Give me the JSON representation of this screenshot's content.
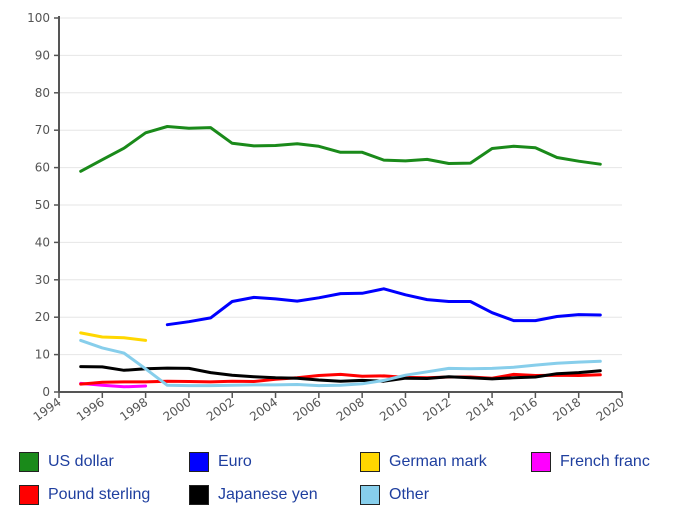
{
  "chart_data": {
    "type": "line",
    "xlim": [
      1994,
      2020
    ],
    "ylim": [
      0,
      100
    ],
    "x_ticks": [
      "1994",
      "1996",
      "1998",
      "2000",
      "2002",
      "2004",
      "2006",
      "2008",
      "2010",
      "2012",
      "2014",
      "2016",
      "2018",
      "2020"
    ],
    "y_ticks": [
      "0",
      "10",
      "20",
      "30",
      "40",
      "50",
      "60",
      "70",
      "80",
      "90",
      "100"
    ],
    "grid": "horizontal",
    "legend_position": "bottom",
    "series": [
      {
        "name": "US dollar",
        "color": "#1a8a1a",
        "x": [
          1995,
          1996,
          1997,
          1998,
          1999,
          2000,
          2001,
          2002,
          2003,
          2004,
          2005,
          2006,
          2007,
          2008,
          2009,
          2010,
          2011,
          2012,
          2013,
          2014,
          2015,
          2016,
          2017,
          2018,
          2019
        ],
        "values": [
          59.0,
          62.1,
          65.2,
          69.3,
          71.0,
          70.5,
          70.7,
          66.5,
          65.8,
          65.9,
          66.4,
          65.7,
          64.1,
          64.1,
          62.0,
          61.8,
          62.2,
          61.1,
          61.2,
          65.1,
          65.7,
          65.3,
          62.7,
          61.7,
          60.9
        ]
      },
      {
        "name": "Euro",
        "color": "#0000ff",
        "x": [
          1999,
          2000,
          2001,
          2002,
          2003,
          2004,
          2005,
          2006,
          2007,
          2008,
          2009,
          2010,
          2011,
          2012,
          2013,
          2014,
          2015,
          2016,
          2017,
          2018,
          2019
        ],
        "values": [
          18.0,
          18.8,
          19.8,
          24.2,
          25.3,
          24.9,
          24.3,
          25.2,
          26.3,
          26.4,
          27.6,
          26.0,
          24.7,
          24.2,
          24.2,
          21.2,
          19.1,
          19.1,
          20.2,
          20.7,
          20.6
        ]
      },
      {
        "name": "German mark",
        "color": "#ffd700",
        "x": [
          1995,
          1996,
          1997,
          1998
        ],
        "values": [
          15.8,
          14.7,
          14.5,
          13.8
        ]
      },
      {
        "name": "French franc",
        "color": "#ff00ff",
        "x": [
          1995,
          1996,
          1997,
          1998
        ],
        "values": [
          2.3,
          1.8,
          1.4,
          1.6
        ]
      },
      {
        "name": "Pound sterling",
        "color": "#ff0000",
        "x": [
          1995,
          1996,
          1997,
          1998,
          1999,
          2000,
          2001,
          2002,
          2003,
          2004,
          2005,
          2006,
          2007,
          2008,
          2009,
          2010,
          2011,
          2012,
          2013,
          2014,
          2015,
          2016,
          2017,
          2018,
          2019
        ],
        "values": [
          2.1,
          2.6,
          2.7,
          2.7,
          2.9,
          2.8,
          2.7,
          2.9,
          2.8,
          3.4,
          3.8,
          4.4,
          4.7,
          4.2,
          4.3,
          3.9,
          3.8,
          4.0,
          4.0,
          3.7,
          4.7,
          4.4,
          4.5,
          4.4,
          4.6
        ]
      },
      {
        "name": "Japanese yen",
        "color": "#000000",
        "x": [
          1995,
          1996,
          1997,
          1998,
          1999,
          2000,
          2001,
          2002,
          2003,
          2004,
          2005,
          2006,
          2007,
          2008,
          2009,
          2010,
          2011,
          2012,
          2013,
          2014,
          2015,
          2016,
          2017,
          2018,
          2019
        ],
        "values": [
          6.8,
          6.7,
          5.8,
          6.2,
          6.4,
          6.3,
          5.2,
          4.5,
          4.1,
          3.8,
          3.7,
          3.2,
          2.9,
          3.1,
          2.9,
          3.7,
          3.6,
          4.1,
          3.8,
          3.5,
          3.8,
          4.0,
          4.9,
          5.2,
          5.7
        ]
      },
      {
        "name": "Other",
        "color": "#87ceeb",
        "x": [
          1995,
          1996,
          1997,
          1998,
          1999,
          2000,
          2001,
          2002,
          2003,
          2004,
          2005,
          2006,
          2007,
          2008,
          2009,
          2010,
          2011,
          2012,
          2013,
          2014,
          2015,
          2016,
          2017,
          2018,
          2019
        ],
        "values": [
          13.8,
          11.8,
          10.4,
          6.2,
          1.8,
          1.7,
          1.7,
          1.8,
          1.9,
          1.9,
          2.0,
          1.7,
          1.8,
          2.2,
          3.1,
          4.5,
          5.4,
          6.3,
          6.2,
          6.3,
          6.6,
          7.2,
          7.7,
          8.0,
          8.2
        ]
      }
    ]
  }
}
